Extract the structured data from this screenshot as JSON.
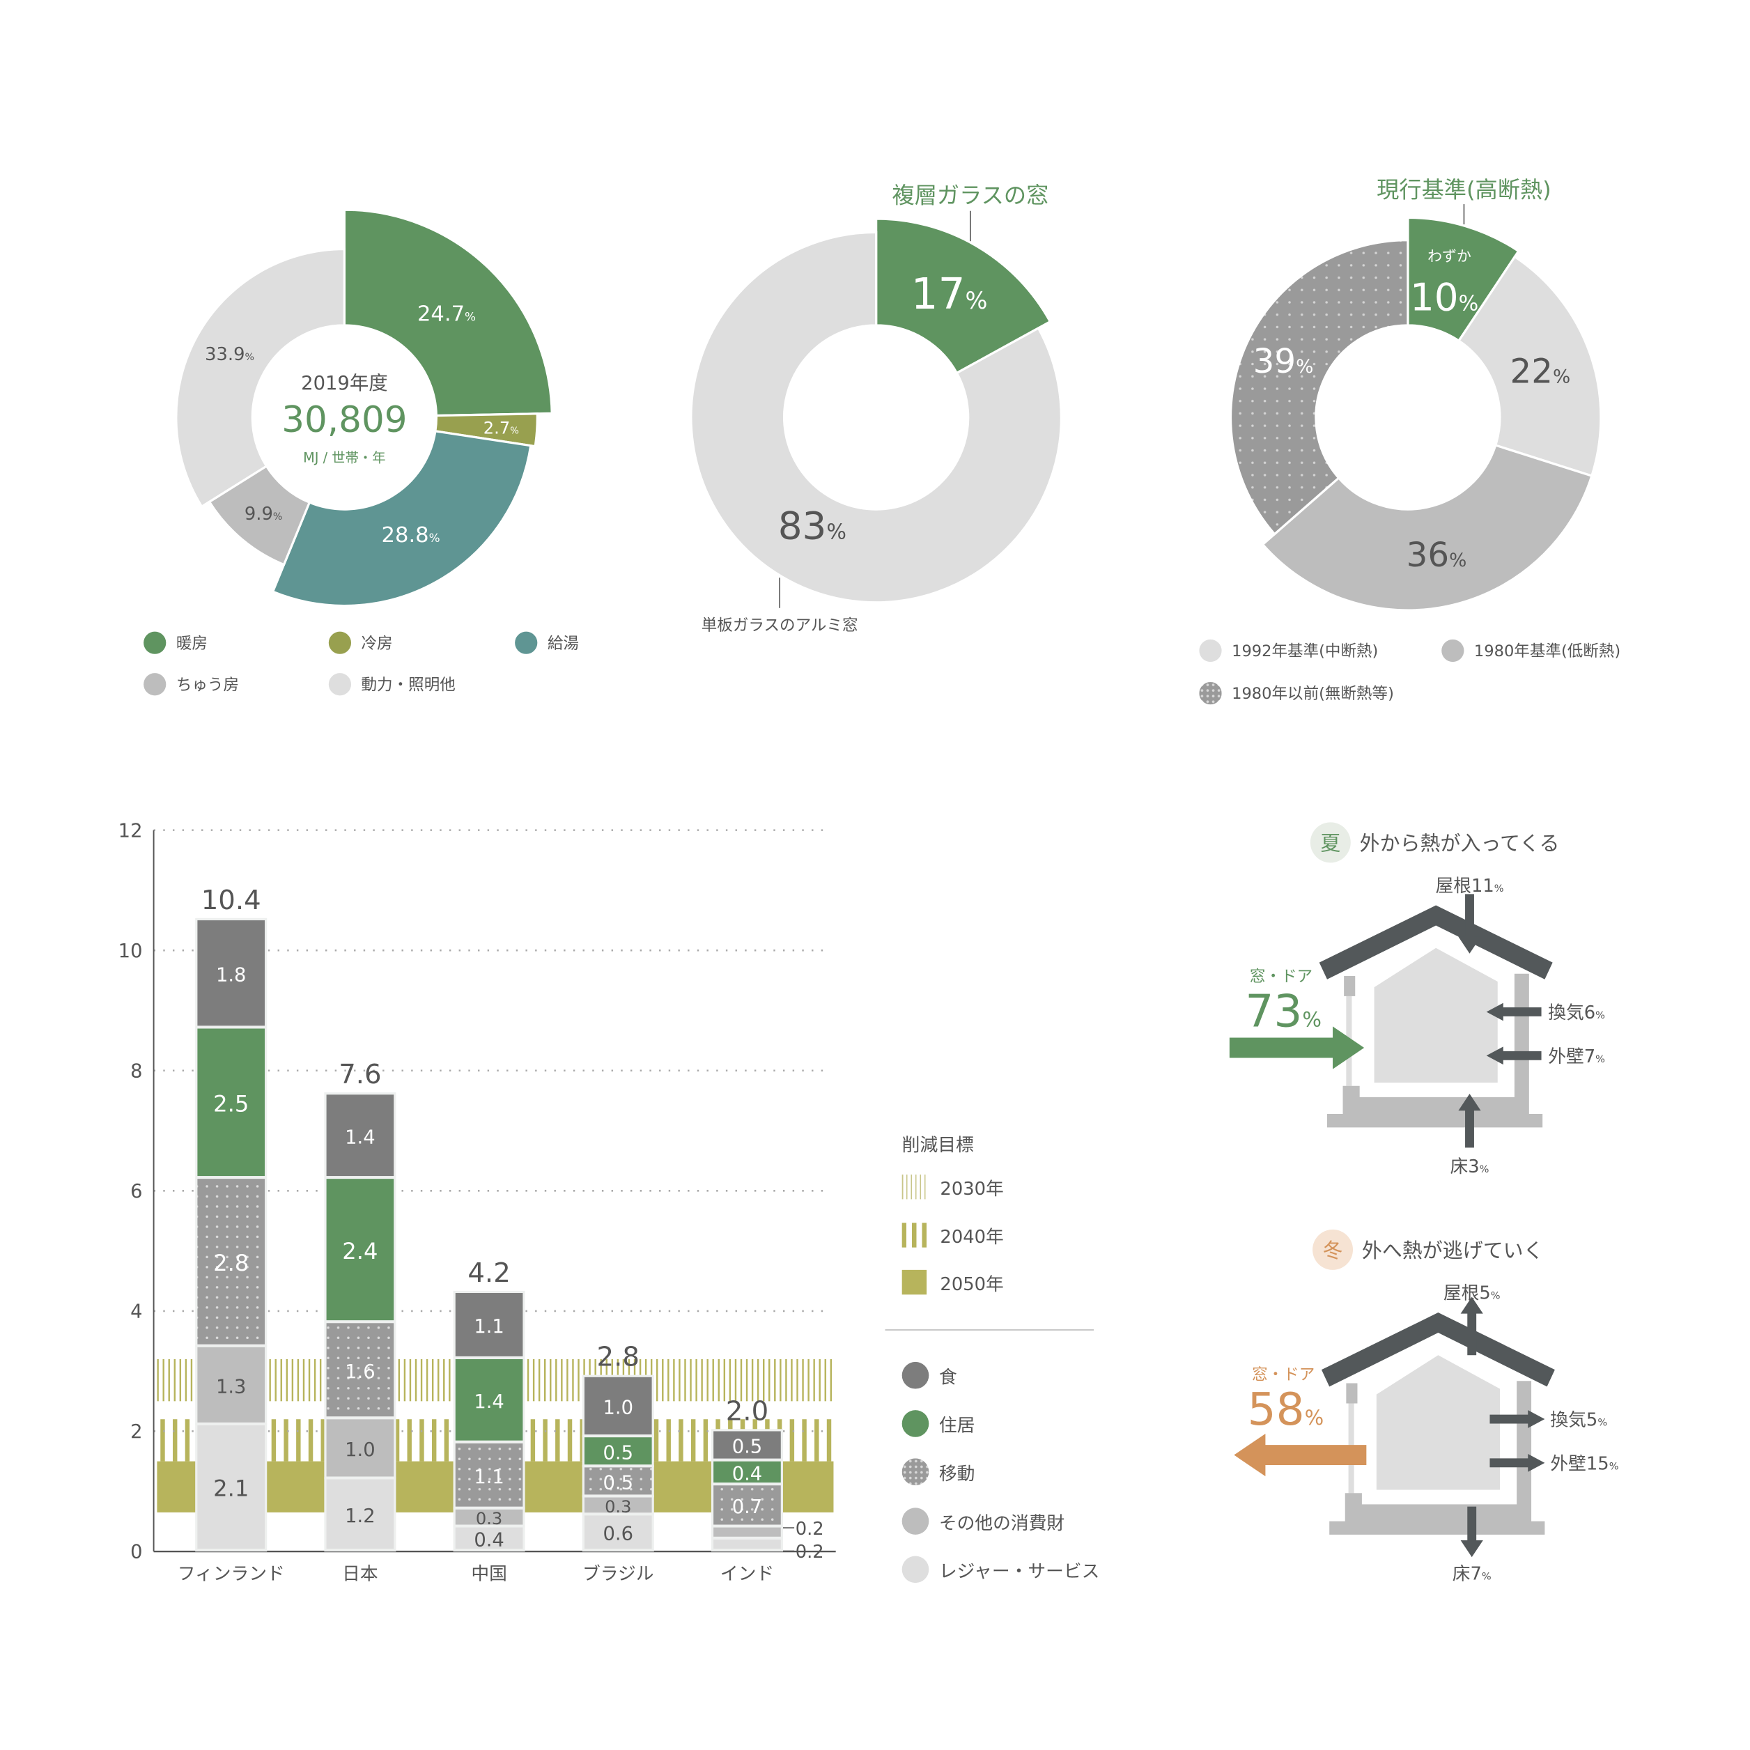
{
  "colors": {
    "green": "#5f9460",
    "olive": "#98a04f",
    "teal": "#5f9593",
    "grey_mid": "#bdbdbd",
    "grey_light": "#dedede",
    "grey_dark": "#7d7d7d",
    "dotted": "#9a9a9a",
    "target": "#b7b45c",
    "orange": "#d4935a",
    "text": "#555555"
  },
  "chart_data": [
    {
      "type": "pie",
      "title": "2019年度",
      "center_value": "30,809",
      "center_unit": "MJ / 世帯・年",
      "slices": [
        {
          "name": "暖房",
          "value": 24.7,
          "label": "24.7",
          "color": "#5f9460"
        },
        {
          "name": "冷房",
          "value": 2.7,
          "label": "2.7",
          "color": "#98a04f"
        },
        {
          "name": "給湯",
          "value": 28.8,
          "label": "28.8",
          "color": "#5f9593"
        },
        {
          "name": "ちゅう房",
          "value": 9.9,
          "label": "9.9",
          "color": "#bdbdbd"
        },
        {
          "name": "動力・照明他",
          "value": 33.9,
          "label": "33.9",
          "color": "#dedede"
        }
      ]
    },
    {
      "type": "pie",
      "slices": [
        {
          "name": "複層ガラスの窓",
          "value": 17,
          "label": "17",
          "color": "#5f9460"
        },
        {
          "name": "単板ガラスのアルミ窓",
          "value": 83,
          "label": "83",
          "color": "#dedede"
        }
      ]
    },
    {
      "type": "pie",
      "title": "現行基準(高断熱)",
      "slices": [
        {
          "name": "現行基準(高断熱)",
          "value": 10,
          "label": "10",
          "note": "わずか",
          "color": "#5f9460"
        },
        {
          "name": "1992年基準(中断熱)",
          "value": 22,
          "label": "22",
          "color": "#dedede"
        },
        {
          "name": "1980年基準(低断熱)",
          "value": 36,
          "label": "36",
          "color": "#bdbdbd"
        },
        {
          "name": "1980年以前(無断熱等)",
          "value": 39,
          "label": "39",
          "color": "#9a9a9a"
        }
      ]
    },
    {
      "type": "bar",
      "stacked": true,
      "ylim": [
        0,
        12
      ],
      "yticks": [
        0,
        2,
        4,
        6,
        8,
        10,
        12
      ],
      "categories": [
        "フィンランド",
        "日本",
        "中国",
        "ブラジル",
        "インド"
      ],
      "totals": [
        "10.4",
        "7.6",
        "4.2",
        "2.8",
        "2.0"
      ],
      "series": [
        {
          "name": "レジャー・サービス",
          "values": [
            2.1,
            1.2,
            0.4,
            0.6,
            0.2
          ],
          "color": "#dedede"
        },
        {
          "name": "その他の消費財",
          "values": [
            1.3,
            1.0,
            0.3,
            0.3,
            0.2
          ],
          "color": "#bdbdbd"
        },
        {
          "name": "移動",
          "values": [
            2.8,
            1.6,
            1.1,
            0.5,
            0.7
          ],
          "color": "#9a9a9a",
          "pattern": "dots"
        },
        {
          "name": "住居",
          "values": [
            2.5,
            2.4,
            1.4,
            0.5,
            0.4
          ],
          "color": "#5f9460"
        },
        {
          "name": "食",
          "values": [
            1.8,
            1.4,
            1.1,
            1.0,
            0.5
          ],
          "color": "#7d7d7d"
        }
      ],
      "targets_title": "削減目標",
      "targets": [
        {
          "name": "2030年",
          "range": [
            2.5,
            3.2
          ],
          "style": "thin-stripes"
        },
        {
          "name": "2040年",
          "range": [
            1.5,
            2.2
          ],
          "style": "thick-stripes"
        },
        {
          "name": "2050年",
          "range": [
            0.65,
            1.5
          ],
          "style": "solid"
        }
      ]
    }
  ],
  "donut2": {
    "callout_top": "複層ガラスの窓",
    "callout_bottom": "単板ガラスのアルミ窓"
  },
  "donut3": {
    "callout_top": "現行基準(高断熱)",
    "note": "わずか"
  },
  "pct": "%",
  "summer": {
    "badge": "夏",
    "title": "外から熱が入ってくる",
    "window_label": "窓・ドア",
    "window_value": "73",
    "roof": "屋根11",
    "vent": "換気6",
    "wall": "外壁7",
    "floor": "床3"
  },
  "winter": {
    "badge": "冬",
    "title": "外へ熱が逃げていく",
    "window_label": "窓・ドア",
    "window_value": "58",
    "roof": "屋根5",
    "vent": "換気5",
    "wall": "外壁15",
    "floor": "床7"
  }
}
